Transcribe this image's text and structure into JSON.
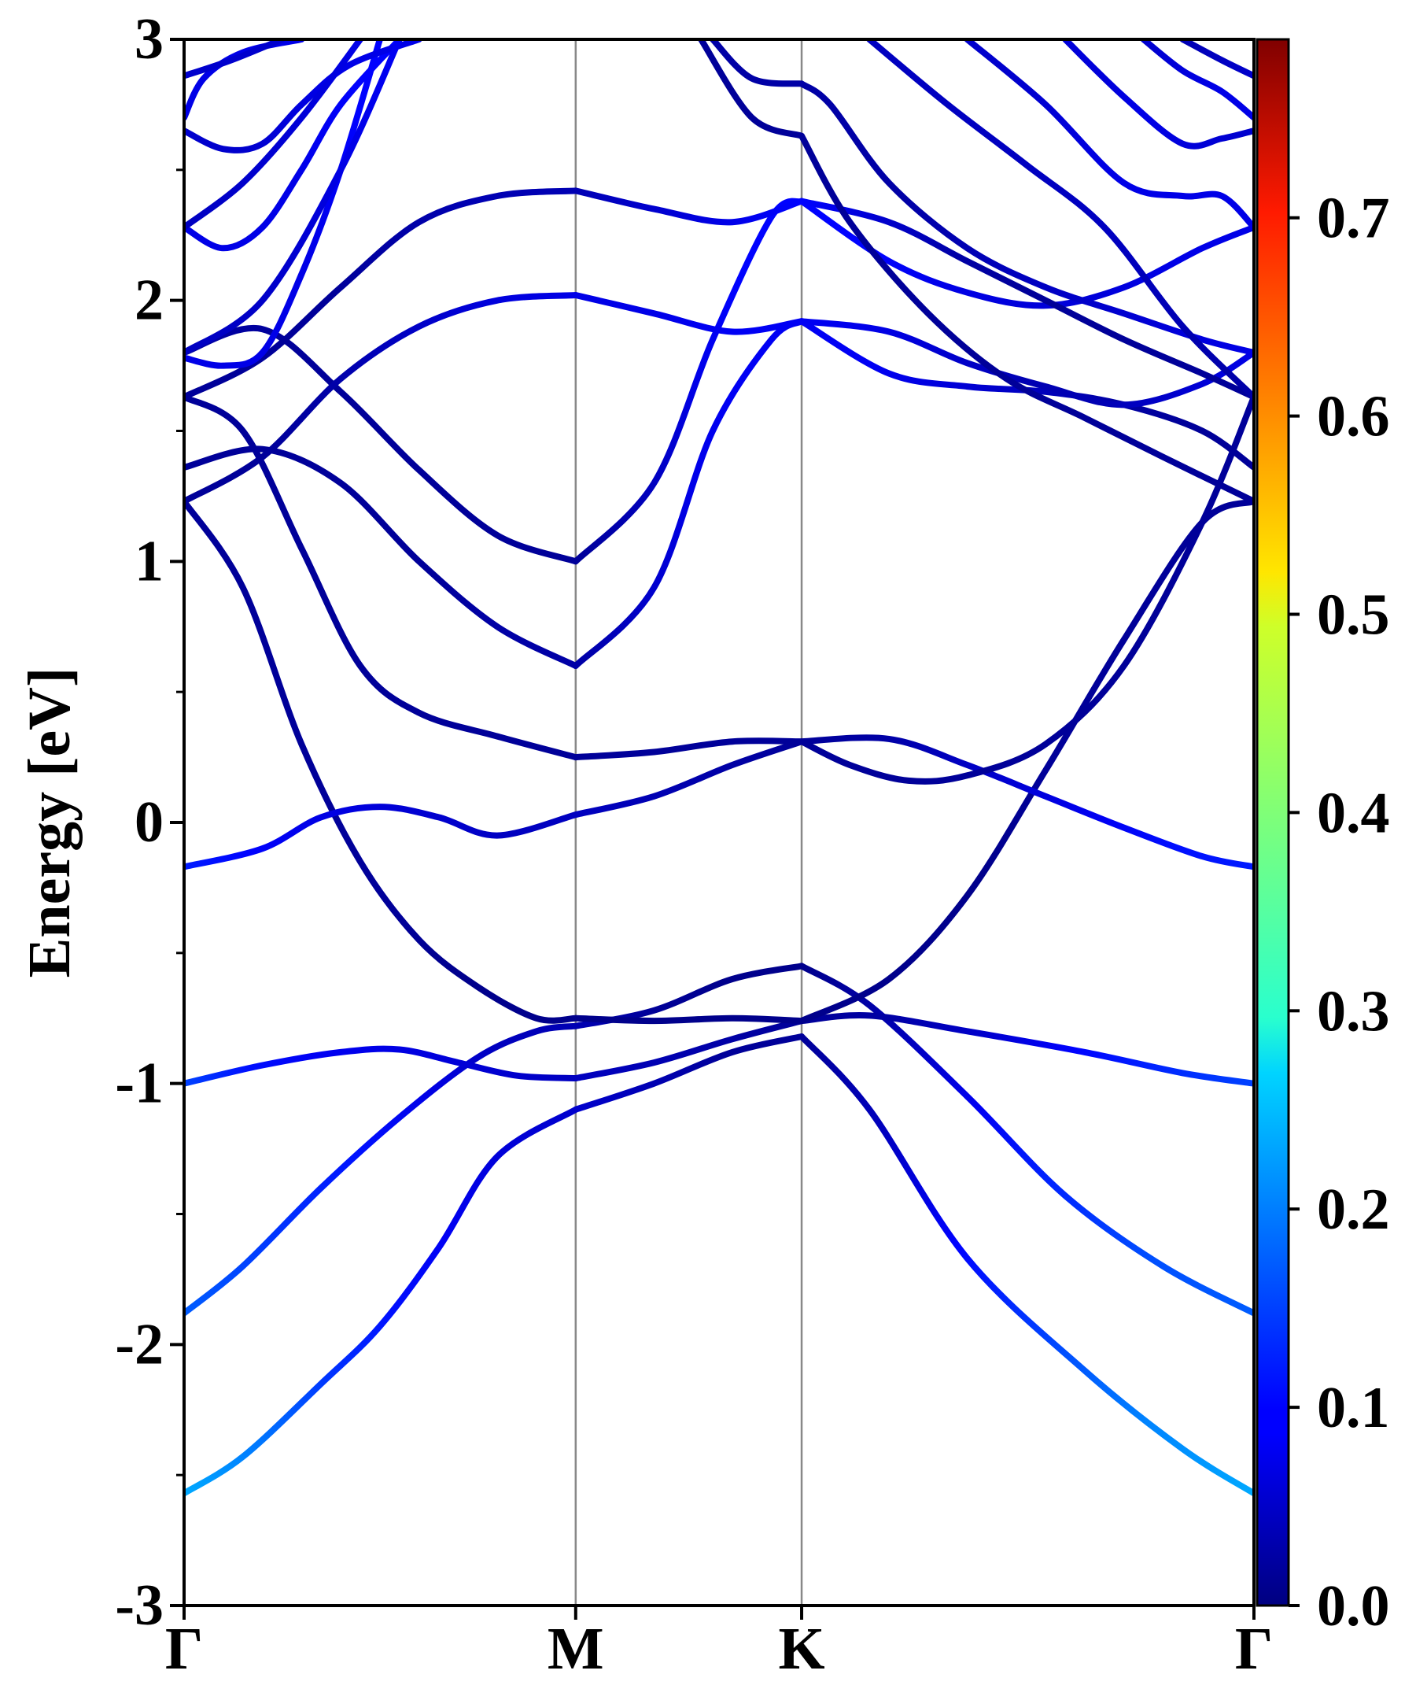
{
  "chart_data": {
    "type": "line",
    "subtype": "electronic band structure (projected weight colored)",
    "ylabel": "Energy [eV]",
    "xlabel": "",
    "ylim": [
      -3,
      3
    ],
    "yticks": [
      -3,
      -2,
      -1,
      0,
      1,
      2,
      3
    ],
    "ytick_labels": [
      "-3",
      "-2",
      "-1",
      "0",
      "1",
      "2",
      "3"
    ],
    "kpath": [
      {
        "label": "Γ",
        "x": 0.0
      },
      {
        "label": "M",
        "x": 1.0
      },
      {
        "label": "K",
        "x": 1.577
      },
      {
        "label": "Γ",
        "x": 2.732
      }
    ],
    "grid": false,
    "colorbar": {
      "colormap": "jet",
      "range": [
        0.0,
        0.79
      ],
      "ticks": [
        0.0,
        0.1,
        0.2,
        0.3,
        0.4,
        0.5,
        0.6,
        0.7
      ],
      "tick_labels": [
        "0.0",
        "0.1",
        "0.2",
        "0.3",
        "0.4",
        "0.5",
        "0.6",
        "0.7"
      ]
    },
    "series": [
      {
        "x": [
          0,
          0.15,
          0.35,
          0.5,
          0.65,
          0.8,
          1.0
        ],
        "y": [
          -2.57,
          -2.43,
          -2.15,
          -1.93,
          -1.63,
          -1.28,
          -1.1
        ],
        "weight": [
          0.23,
          0.19,
          0.14,
          0.11,
          0.09,
          0.07,
          0.06
        ]
      },
      {
        "x": [
          1.0,
          1.2,
          1.4,
          1.577
        ],
        "y": [
          -1.1,
          -1.0,
          -0.88,
          -0.82
        ],
        "weight": [
          0.06,
          0.04,
          0.02,
          0.02
        ]
      },
      {
        "x": [
          1.577,
          1.75,
          2.0,
          2.3,
          2.55,
          2.732
        ],
        "y": [
          -0.82,
          -1.1,
          -1.67,
          -2.1,
          -2.4,
          -2.57
        ],
        "weight": [
          0.02,
          0.05,
          0.1,
          0.15,
          0.2,
          0.23
        ]
      },
      {
        "x": [
          0,
          0.15,
          0.35,
          0.55,
          0.75,
          0.9,
          1.0
        ],
        "y": [
          -1.88,
          -1.7,
          -1.4,
          -1.13,
          -0.9,
          -0.8,
          -0.78
        ],
        "weight": [
          0.17,
          0.15,
          0.13,
          0.11,
          0.08,
          0.05,
          0.04
        ]
      },
      {
        "x": [
          1.0,
          1.2,
          1.4,
          1.577
        ],
        "y": [
          -0.78,
          -0.72,
          -0.6,
          -0.55
        ],
        "weight": [
          0.04,
          0.02,
          0.01,
          0.01
        ]
      },
      {
        "x": [
          1.577,
          1.75,
          2.0,
          2.25,
          2.5,
          2.732
        ],
        "y": [
          -0.55,
          -0.7,
          -1.05,
          -1.43,
          -1.7,
          -1.88
        ],
        "weight": [
          0.01,
          0.04,
          0.09,
          0.13,
          0.16,
          0.17
        ]
      },
      {
        "x": [
          0,
          0.2,
          0.4,
          0.55,
          0.7,
          0.85,
          1.0
        ],
        "y": [
          -1.0,
          -0.93,
          -0.88,
          -0.87,
          -0.92,
          -0.97,
          -0.98
        ],
        "weight": [
          0.15,
          0.11,
          0.09,
          0.08,
          0.07,
          0.06,
          0.05
        ]
      },
      {
        "x": [
          1.0,
          1.2,
          1.4,
          1.577
        ],
        "y": [
          -0.98,
          -0.92,
          -0.83,
          -0.76
        ],
        "weight": [
          0.05,
          0.04,
          0.03,
          0.02
        ]
      },
      {
        "x": [
          1.577,
          1.75,
          2.0,
          2.3,
          2.55,
          2.732
        ],
        "y": [
          -0.76,
          -0.74,
          -0.8,
          -0.88,
          -0.96,
          -1.0
        ],
        "weight": [
          0.02,
          0.03,
          0.06,
          0.1,
          0.13,
          0.15
        ]
      },
      {
        "x": [
          0,
          0.15,
          0.3,
          0.45,
          0.6,
          0.75,
          0.9,
          1.0
        ],
        "y": [
          1.23,
          0.9,
          0.3,
          -0.15,
          -0.45,
          -0.63,
          -0.75,
          -0.75
        ],
        "weight": [
          0.02,
          0.02,
          0.02,
          0.02,
          0.02,
          0.02,
          0.01,
          0.01
        ]
      },
      {
        "x": [
          1.0,
          1.2,
          1.4,
          1.577
        ],
        "y": [
          -0.75,
          -0.76,
          -0.75,
          -0.76
        ],
        "weight": [
          0.01,
          0.01,
          0.01,
          0.01
        ]
      },
      {
        "x": [
          1.577,
          1.8,
          2.0,
          2.2,
          2.4,
          2.6,
          2.732
        ],
        "y": [
          -0.76,
          -0.6,
          -0.28,
          0.2,
          0.7,
          1.15,
          1.23
        ],
        "weight": [
          0.01,
          0.01,
          0.01,
          0.02,
          0.02,
          0.02,
          0.02
        ]
      },
      {
        "x": [
          0,
          0.2,
          0.35,
          0.5,
          0.65,
          0.8,
          1.0
        ],
        "y": [
          -0.17,
          -0.1,
          0.02,
          0.06,
          0.02,
          -0.05,
          0.03
        ],
        "weight": [
          0.12,
          0.1,
          0.08,
          0.07,
          0.06,
          0.05,
          0.05
        ]
      },
      {
        "x": [
          1.0,
          1.2,
          1.4,
          1.577
        ],
        "y": [
          0.03,
          0.1,
          0.22,
          0.31
        ],
        "weight": [
          0.05,
          0.04,
          0.03,
          0.02
        ]
      },
      {
        "x": [
          1.577,
          1.8,
          2.0,
          2.2,
          2.4,
          2.6,
          2.732
        ],
        "y": [
          0.31,
          0.32,
          0.22,
          0.1,
          -0.02,
          -0.13,
          -0.17
        ],
        "weight": [
          0.02,
          0.03,
          0.05,
          0.07,
          0.09,
          0.11,
          0.12
        ]
      },
      {
        "x": [
          0,
          0.15,
          0.3,
          0.45,
          0.6,
          0.8,
          1.0
        ],
        "y": [
          1.63,
          1.5,
          1.05,
          0.6,
          0.42,
          0.33,
          0.25
        ],
        "weight": [
          0.02,
          0.02,
          0.02,
          0.02,
          0.02,
          0.02,
          0.02
        ]
      },
      {
        "x": [
          1.0,
          1.2,
          1.4,
          1.577
        ],
        "y": [
          0.25,
          0.27,
          0.31,
          0.31
        ],
        "weight": [
          0.02,
          0.02,
          0.02,
          0.02
        ]
      },
      {
        "x": [
          1.577,
          1.7,
          1.85,
          2.0,
          2.2,
          2.4,
          2.6,
          2.732
        ],
        "y": [
          0.31,
          0.22,
          0.16,
          0.18,
          0.3,
          0.6,
          1.15,
          1.63
        ],
        "weight": [
          0.02,
          0.02,
          0.02,
          0.02,
          0.02,
          0.02,
          0.02,
          0.02
        ]
      },
      {
        "x": [
          0,
          0.2,
          0.4,
          0.6,
          0.8,
          1.0
        ],
        "y": [
          1.36,
          1.43,
          1.3,
          1.0,
          0.75,
          0.6
        ],
        "weight": [
          0.02,
          0.02,
          0.02,
          0.02,
          0.03,
          0.03
        ]
      },
      {
        "x": [
          1.0,
          1.2,
          1.35,
          1.5,
          1.577
        ],
        "y": [
          0.6,
          0.9,
          1.5,
          1.85,
          1.92
        ],
        "weight": [
          0.03,
          0.06,
          0.08,
          0.09,
          0.09
        ]
      },
      {
        "x": [
          1.577,
          1.8,
          2.0,
          2.2,
          2.4,
          2.6,
          2.732
        ],
        "y": [
          1.92,
          1.72,
          1.67,
          1.65,
          1.6,
          1.5,
          1.36
        ],
        "weight": [
          0.09,
          0.09,
          0.07,
          0.05,
          0.03,
          0.02,
          0.02
        ]
      },
      {
        "x": [
          0,
          0.2,
          0.4,
          0.6,
          0.8,
          1.0
        ],
        "y": [
          1.8,
          1.89,
          1.65,
          1.35,
          1.1,
          1.0
        ],
        "weight": [
          0.03,
          0.02,
          0.02,
          0.02,
          0.02,
          0.02
        ]
      },
      {
        "x": [
          1.0,
          1.2,
          1.35,
          1.5,
          1.577
        ],
        "y": [
          1.0,
          1.3,
          1.85,
          2.32,
          2.38
        ],
        "weight": [
          0.02,
          0.05,
          0.08,
          0.1,
          0.1
        ]
      },
      {
        "x": [
          1.577,
          1.8,
          2.0,
          2.2,
          2.4,
          2.6,
          2.732
        ],
        "y": [
          2.38,
          2.15,
          2.03,
          1.98,
          2.05,
          2.2,
          2.28
        ],
        "weight": [
          0.1,
          0.1,
          0.08,
          0.07,
          0.07,
          0.08,
          0.08
        ]
      },
      {
        "x": [
          0,
          0.2,
          0.4,
          0.6,
          0.8,
          1.0
        ],
        "y": [
          1.23,
          1.4,
          1.7,
          1.9,
          2.0,
          2.02
        ],
        "weight": [
          0.02,
          0.02,
          0.03,
          0.05,
          0.07,
          0.08
        ]
      },
      {
        "x": [
          1.0,
          1.2,
          1.4,
          1.577
        ],
        "y": [
          2.02,
          1.95,
          1.88,
          1.92
        ],
        "weight": [
          0.08,
          0.08,
          0.09,
          0.09
        ]
      },
      {
        "x": [
          1.577,
          1.8,
          2.0,
          2.2,
          2.4,
          2.6,
          2.732
        ],
        "y": [
          1.92,
          1.88,
          1.76,
          1.67,
          1.6,
          1.68,
          1.8
        ],
        "weight": [
          0.09,
          0.08,
          0.06,
          0.04,
          0.04,
          0.06,
          0.08
        ]
      },
      {
        "x": [
          0,
          0.2,
          0.4,
          0.6,
          0.8,
          1.0
        ],
        "y": [
          1.63,
          1.78,
          2.05,
          2.3,
          2.4,
          2.42
        ],
        "weight": [
          0.02,
          0.02,
          0.02,
          0.03,
          0.04,
          0.04
        ]
      },
      {
        "x": [
          1.0,
          1.2,
          1.4,
          1.577
        ],
        "y": [
          2.42,
          2.35,
          2.3,
          2.38
        ],
        "weight": [
          0.04,
          0.06,
          0.08,
          0.1
        ]
      },
      {
        "x": [
          1.577,
          1.8,
          2.0,
          2.2,
          2.4,
          2.6,
          2.732
        ],
        "y": [
          2.38,
          2.3,
          2.15,
          2.0,
          1.85,
          1.72,
          1.63
        ],
        "weight": [
          0.1,
          0.06,
          0.03,
          0.02,
          0.02,
          0.02,
          0.02
        ]
      },
      {
        "x": [
          0,
          0.1,
          0.2,
          0.3,
          0.4,
          0.5
        ],
        "y": [
          1.78,
          1.75,
          1.8,
          2.1,
          2.5,
          3.0
        ],
        "weight": [
          0.08,
          0.08,
          0.08,
          0.09,
          0.1,
          0.1
        ]
      },
      {
        "x": [
          0,
          0.1,
          0.2,
          0.3,
          0.4,
          0.55
        ],
        "y": [
          2.28,
          2.2,
          2.28,
          2.5,
          2.75,
          3.0
        ],
        "weight": [
          0.08,
          0.08,
          0.08,
          0.09,
          0.1,
          0.1
        ]
      },
      {
        "x": [
          0,
          0.1,
          0.2,
          0.3,
          0.42,
          0.6
        ],
        "y": [
          2.65,
          2.58,
          2.6,
          2.75,
          2.9,
          3.0
        ],
        "weight": [
          0.06,
          0.06,
          0.07,
          0.08,
          0.08,
          0.08
        ]
      },
      {
        "x": [
          0,
          0.05,
          0.15,
          0.3
        ],
        "y": [
          2.7,
          2.85,
          2.95,
          3.0
        ],
        "weight": [
          0.08,
          0.08,
          0.08,
          0.08
        ]
      },
      {
        "x": [
          0,
          0.12,
          0.25
        ],
        "y": [
          2.86,
          2.92,
          3.0
        ],
        "weight": [
          0.06,
          0.06,
          0.06
        ]
      },
      {
        "x": [
          0,
          0.2,
          0.4,
          0.55
        ],
        "y": [
          1.8,
          2.0,
          2.5,
          3.0
        ],
        "weight": [
          0.05,
          0.06,
          0.08,
          0.09
        ]
      },
      {
        "x": [
          0,
          0.15,
          0.3,
          0.45
        ],
        "y": [
          2.28,
          2.45,
          2.7,
          3.0
        ],
        "weight": [
          0.05,
          0.06,
          0.07,
          0.08
        ]
      },
      {
        "x": [
          1.35,
          1.45,
          1.577
        ],
        "y": [
          3.0,
          2.85,
          2.83
        ],
        "weight": [
          0.03,
          0.03,
          0.03
        ]
      },
      {
        "x": [
          1.577,
          1.65,
          1.8,
          2.0,
          2.2,
          2.4,
          2.6,
          2.732
        ],
        "y": [
          2.83,
          2.75,
          2.45,
          2.2,
          2.05,
          1.95,
          1.85,
          1.8
        ],
        "weight": [
          0.03,
          0.03,
          0.03,
          0.04,
          0.05,
          0.06,
          0.07,
          0.08
        ]
      },
      {
        "x": [
          1.32,
          1.45,
          1.577
        ],
        "y": [
          3.0,
          2.7,
          2.63
        ],
        "weight": [
          0.02,
          0.02,
          0.02
        ]
      },
      {
        "x": [
          1.577,
          1.7,
          1.9,
          2.1,
          2.3,
          2.5,
          2.732
        ],
        "y": [
          2.63,
          2.3,
          1.95,
          1.7,
          1.55,
          1.4,
          1.23
        ],
        "weight": [
          0.02,
          0.02,
          0.02,
          0.02,
          0.02,
          0.02,
          0.02
        ]
      },
      {
        "x": [
          1.75,
          1.95,
          2.15,
          2.35,
          2.55,
          2.732
        ],
        "y": [
          3.0,
          2.75,
          2.52,
          2.28,
          1.9,
          1.63
        ],
        "weight": [
          0.05,
          0.05,
          0.05,
          0.05,
          0.04,
          0.03
        ]
      },
      {
        "x": [
          2.0,
          2.2,
          2.4,
          2.55,
          2.65,
          2.732
        ],
        "y": [
          3.0,
          2.75,
          2.45,
          2.4,
          2.4,
          2.28
        ],
        "weight": [
          0.06,
          0.06,
          0.07,
          0.08,
          0.08,
          0.08
        ]
      },
      {
        "x": [
          2.25,
          2.4,
          2.55,
          2.65,
          2.732
        ],
        "y": [
          3.0,
          2.78,
          2.6,
          2.62,
          2.65
        ],
        "weight": [
          0.07,
          0.07,
          0.08,
          0.07,
          0.06
        ]
      },
      {
        "x": [
          2.45,
          2.55,
          2.65,
          2.732
        ],
        "y": [
          3.0,
          2.88,
          2.8,
          2.7
        ],
        "weight": [
          0.06,
          0.07,
          0.08,
          0.08
        ]
      },
      {
        "x": [
          2.55,
          2.65,
          2.732
        ],
        "y": [
          3.0,
          2.92,
          2.86
        ],
        "weight": [
          0.04,
          0.05,
          0.06
        ]
      }
    ]
  }
}
